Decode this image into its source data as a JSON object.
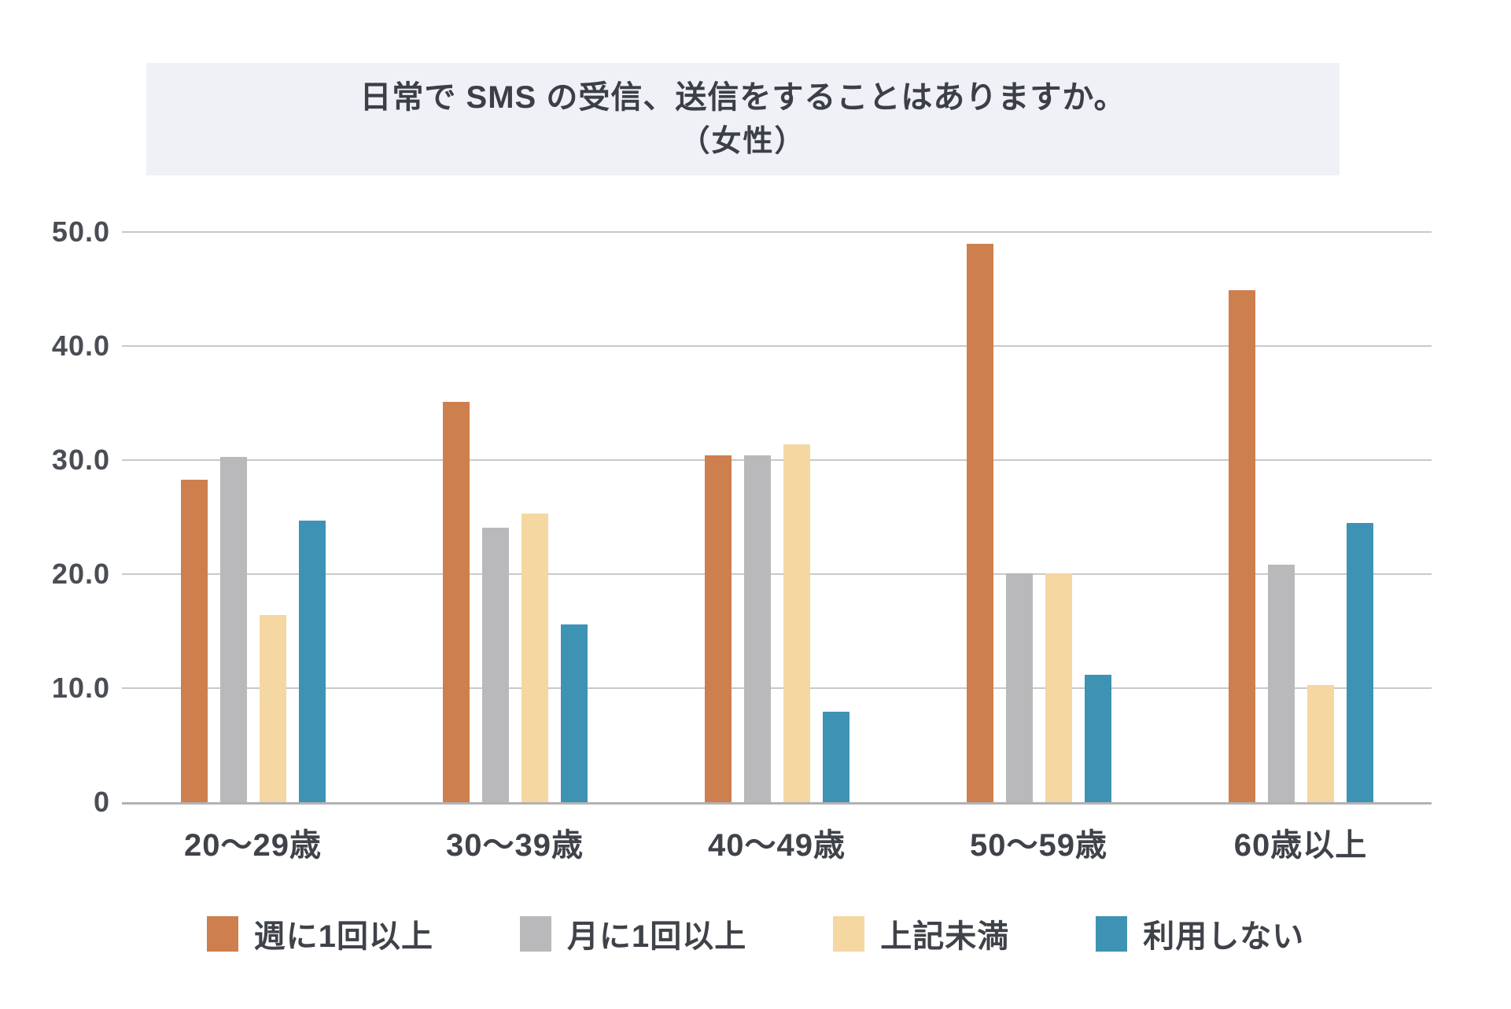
{
  "chart_data": {
    "type": "bar",
    "title": "日常で SMS の受信、送信をすることはありますか。",
    "subtitle": "（女性）",
    "categories": [
      "20〜29歳",
      "30〜39歳",
      "40〜49歳",
      "50〜59歳",
      "60歳以上"
    ],
    "series": [
      {
        "name": "週に1回以上",
        "color": "#CE7F4E",
        "values": [
          28.3,
          35.1,
          30.4,
          49.0,
          44.9
        ]
      },
      {
        "name": "月に1回以上",
        "color": "#B9B9BB",
        "values": [
          30.3,
          24.1,
          30.4,
          20.1,
          20.8
        ]
      },
      {
        "name": "上記未満",
        "color": "#F5D7A2",
        "values": [
          16.4,
          25.3,
          31.4,
          20.1,
          10.3
        ]
      },
      {
        "name": "利用しない",
        "color": "#3E93B4",
        "values": [
          24.7,
          15.6,
          7.9,
          11.2,
          24.5
        ]
      }
    ],
    "ylim": [
      0,
      50
    ],
    "yticks": [
      {
        "label": "50.0",
        "value": 50
      },
      {
        "label": "40.0",
        "value": 40
      },
      {
        "label": "30.0",
        "value": 30
      },
      {
        "label": "20.0",
        "value": 20
      },
      {
        "label": "10.0",
        "value": 10
      },
      {
        "label": "0",
        "value": 0
      }
    ],
    "grid": true,
    "legend_position": "bottom",
    "colors": {
      "background": "#FFFFFF",
      "title_band": "#EFF1F6",
      "text": "#3F4349",
      "gridline": "#C9C9C9",
      "axis_line": "#B2B2B2"
    }
  }
}
